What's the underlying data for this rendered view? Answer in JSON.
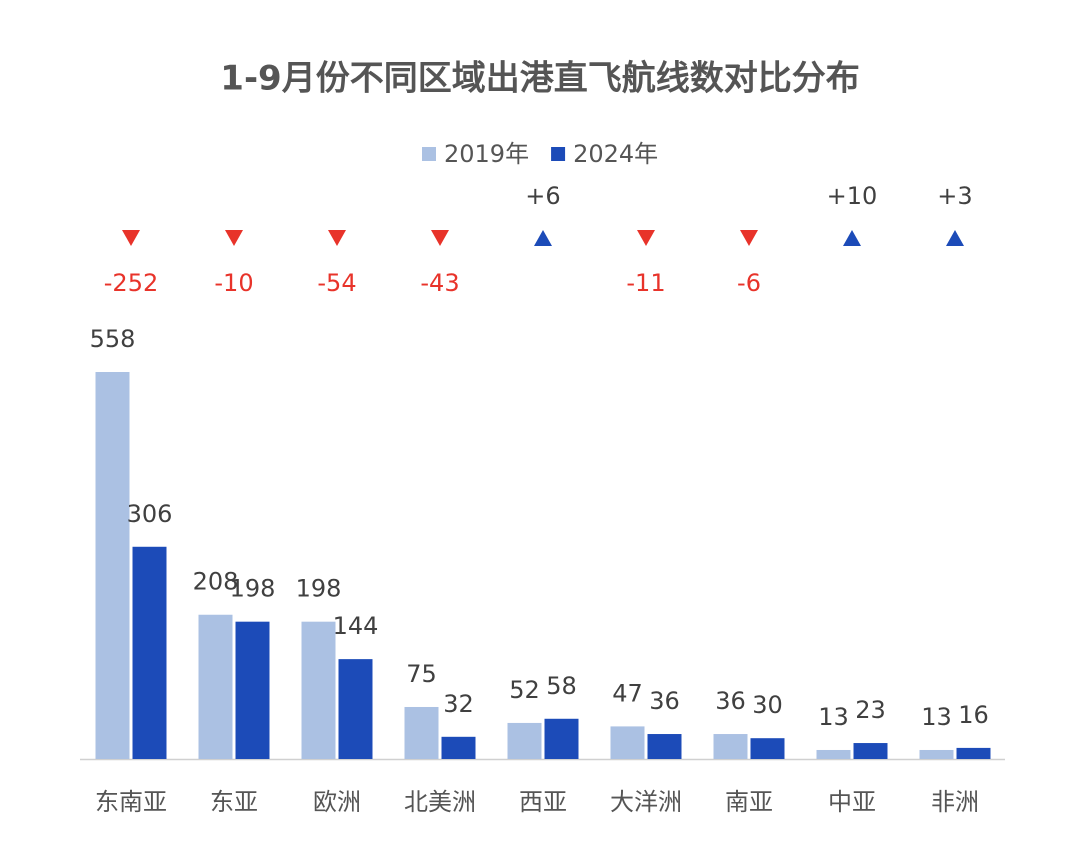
{
  "chart_data": {
    "type": "bar",
    "title": "1-9月份不同区域出港直飞航线数对比分布",
    "categories": [
      "东南亚",
      "东亚",
      "欧洲",
      "北美洲",
      "西亚",
      "大洋洲",
      "南亚",
      "中亚",
      "非洲"
    ],
    "series": [
      {
        "name": "2019年",
        "color": "#abc1e3",
        "values": [
          558,
          208,
          198,
          75,
          52,
          47,
          36,
          13,
          13
        ]
      },
      {
        "name": "2024年",
        "color": "#1c4bb8",
        "values": [
          306,
          198,
          144,
          32,
          58,
          36,
          30,
          23,
          16
        ]
      }
    ],
    "changes": [
      -252,
      -10,
      -54,
      -43,
      6,
      -11,
      -6,
      10,
      3
    ],
    "change_labels": [
      "-252",
      "-10",
      "-54",
      "-43",
      "+6",
      "-11",
      "-6",
      "+10",
      "+3"
    ],
    "change_colors": {
      "down": "#e8332a",
      "up": "#1c4bb8"
    },
    "legend": "top"
  }
}
